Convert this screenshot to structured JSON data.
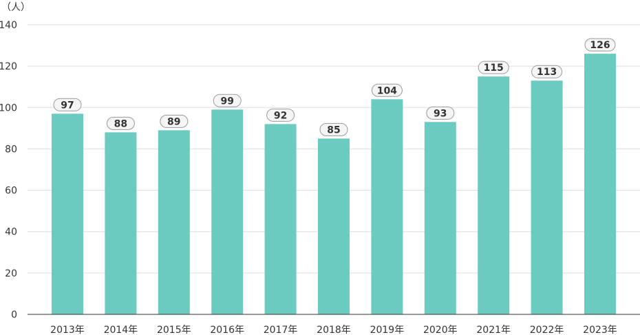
{
  "chart_data": {
    "type": "bar",
    "unit_label": "（人）",
    "categories": [
      "2013年",
      "2014年",
      "2015年",
      "2016年",
      "2017年",
      "2018年",
      "2019年",
      "2020年",
      "2021年",
      "2022年",
      "2023年"
    ],
    "values": [
      97,
      88,
      89,
      99,
      92,
      85,
      104,
      93,
      115,
      113,
      126
    ],
    "ylim": [
      0,
      140
    ],
    "yticks": [
      0,
      20,
      40,
      60,
      80,
      100,
      120,
      140
    ],
    "grid": true,
    "legend": "none",
    "data_labels": true,
    "colors": {
      "bar": "#6ccbc0",
      "grid": "#dddddd",
      "axis": "#333333",
      "tick_text": "#333333",
      "label_bg": "#f5f5f5",
      "label_border": "#999999"
    }
  }
}
